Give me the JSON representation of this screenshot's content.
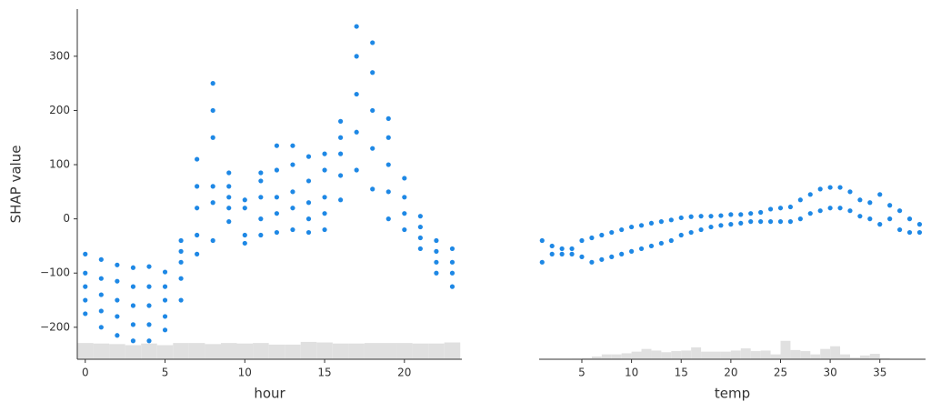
{
  "chart_data": [
    {
      "type": "scatter",
      "xlabel": "hour",
      "ylabel": "SHAP value",
      "color": "#1e88e5",
      "xlim": [
        -0.5,
        23.6
      ],
      "ylim": [
        -259,
        387
      ],
      "xticks": [
        0,
        5,
        10,
        15,
        20
      ],
      "yticks": [
        {
          "value": -200,
          "label": "−200"
        },
        {
          "value": -100,
          "label": "−100"
        },
        0,
        100,
        200,
        300
      ],
      "x": [
        0,
        0,
        0,
        0,
        0,
        1,
        1,
        1,
        1,
        1,
        2,
        2,
        2,
        2,
        2,
        3,
        3,
        3,
        3,
        3,
        4,
        4,
        4,
        4,
        4,
        5,
        5,
        5,
        5,
        5,
        6,
        6,
        6,
        6,
        6,
        7,
        7,
        7,
        7,
        7,
        8,
        8,
        8,
        8,
        8,
        8,
        9,
        9,
        9,
        9,
        9,
        10,
        10,
        10,
        10,
        11,
        11,
        11,
        11,
        11,
        12,
        12,
        12,
        12,
        12,
        13,
        13,
        13,
        13,
        13,
        14,
        14,
        14,
        14,
        14,
        15,
        15,
        15,
        15,
        15,
        16,
        16,
        16,
        16,
        16,
        17,
        17,
        17,
        17,
        17,
        18,
        18,
        18,
        18,
        18,
        19,
        19,
        19,
        19,
        19,
        20,
        20,
        20,
        20,
        21,
        21,
        21,
        21,
        22,
        22,
        22,
        22,
        23,
        23,
        23,
        23
      ],
      "values": [
        -175,
        -150,
        -125,
        -100,
        -65,
        -200,
        -170,
        -140,
        -110,
        -75,
        -215,
        -180,
        -150,
        -115,
        -85,
        -225,
        -195,
        -160,
        -125,
        -90,
        -225,
        -195,
        -160,
        -125,
        -88,
        -205,
        -180,
        -150,
        -125,
        -98,
        -150,
        -110,
        -80,
        -60,
        -40,
        -65,
        -30,
        20,
        60,
        110,
        -40,
        30,
        60,
        150,
        200,
        250,
        -5,
        20,
        40,
        60,
        85,
        -45,
        -30,
        20,
        35,
        -30,
        0,
        40,
        70,
        85,
        -25,
        10,
        40,
        90,
        135,
        -20,
        20,
        50,
        100,
        135,
        -25,
        0,
        30,
        70,
        115,
        -20,
        10,
        40,
        90,
        120,
        35,
        80,
        120,
        150,
        180,
        90,
        160,
        230,
        300,
        355,
        55,
        130,
        200,
        270,
        325,
        0,
        50,
        100,
        150,
        185,
        -20,
        10,
        40,
        75,
        -55,
        -35,
        -15,
        5,
        -100,
        -80,
        -60,
        -40,
        -125,
        -100,
        -80,
        -55
      ],
      "histogram": {
        "color": "#e0e0e0",
        "bins": [
          -0.5,
          0.5,
          1.5,
          2.5,
          3.5,
          4.5,
          5.5,
          6.5,
          7.5,
          8.5,
          9.5,
          10.5,
          11.5,
          12.5,
          13.5,
          14.5,
          15.5,
          16.5,
          17.5,
          18.5,
          19.5,
          20.5,
          21.5,
          22.5,
          23.5
        ],
        "values": [
          -229,
          -230,
          -231,
          -233,
          -230,
          -233,
          -229,
          -229,
          -231,
          -229,
          -230,
          -229,
          -232,
          -232,
          -227,
          -228,
          -230,
          -230,
          -229,
          -229,
          -229,
          -230,
          -230,
          -228
        ]
      }
    },
    {
      "type": "scatter",
      "xlabel": "temp",
      "color": "#1e88e5",
      "xlim": [
        0.7,
        39.6
      ],
      "ylim": [
        -259,
        387
      ],
      "xticks": [
        5,
        10,
        15,
        20,
        25,
        30,
        35
      ],
      "x": [
        1,
        1,
        2,
        2,
        3,
        3,
        4,
        4,
        5,
        5,
        6,
        6,
        7,
        7,
        8,
        8,
        9,
        9,
        10,
        10,
        11,
        11,
        12,
        12,
        13,
        13,
        14,
        14,
        15,
        15,
        16,
        16,
        17,
        17,
        18,
        18,
        19,
        19,
        20,
        20,
        21,
        21,
        22,
        22,
        23,
        23,
        24,
        24,
        25,
        25,
        26,
        26,
        27,
        27,
        28,
        28,
        29,
        29,
        30,
        30,
        31,
        31,
        32,
        32,
        33,
        33,
        34,
        34,
        35,
        35,
        36,
        36,
        37,
        37,
        38,
        38,
        39,
        39
      ],
      "values": [
        -80,
        -40,
        -65,
        -50,
        -65,
        -55,
        -65,
        -55,
        -70,
        -40,
        -80,
        -35,
        -75,
        -30,
        -70,
        -25,
        -65,
        -20,
        -60,
        -15,
        -55,
        -12,
        -50,
        -8,
        -45,
        -5,
        -40,
        -2,
        -30,
        2,
        -25,
        4,
        -20,
        5,
        -15,
        5,
        -12,
        6,
        -10,
        8,
        -8,
        8,
        -5,
        10,
        -5,
        12,
        -5,
        18,
        -5,
        20,
        -5,
        22,
        0,
        35,
        10,
        45,
        15,
        55,
        20,
        58,
        20,
        58,
        15,
        50,
        5,
        35,
        0,
        30,
        -10,
        45,
        0,
        25,
        -20,
        15,
        -25,
        0,
        -25,
        -10
      ],
      "histogram": {
        "color": "#e0e0e0",
        "bins": [
          1,
          2,
          3,
          4,
          5,
          6,
          7,
          8,
          9,
          10,
          11,
          12,
          13,
          14,
          15,
          16,
          17,
          18,
          19,
          20,
          21,
          22,
          23,
          24,
          25,
          26,
          27,
          28,
          29,
          30,
          31,
          32,
          33,
          34,
          35,
          36,
          37,
          38,
          39
        ],
        "values": [
          -259,
          -259,
          -259,
          -258,
          -257,
          -254,
          -250,
          -250,
          -248,
          -245,
          -240,
          -243,
          -246,
          -244,
          -243,
          -237,
          -245,
          -245,
          -245,
          -243,
          -239,
          -244,
          -243,
          -250,
          -225,
          -242,
          -244,
          -250,
          -240,
          -235,
          -250,
          -256,
          -252,
          -249,
          -257,
          -258,
          -259,
          -259
        ]
      }
    }
  ]
}
